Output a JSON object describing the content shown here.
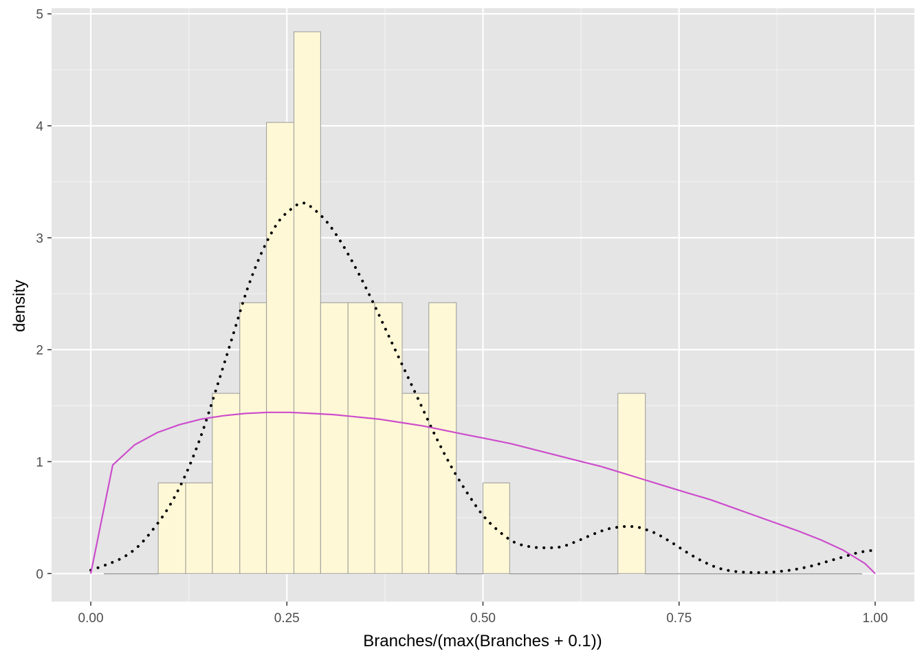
{
  "chart_data": {
    "type": "histogram",
    "title": "",
    "xlabel": "Branches/(max(Branches + 0.1))",
    "ylabel": "density",
    "xlim": [
      -0.05,
      1.05
    ],
    "ylim": [
      -0.25,
      5.05
    ],
    "x_ticks": [
      0.0,
      0.25,
      0.5,
      0.75,
      1.0
    ],
    "x_tick_labels": [
      "0.00",
      "0.25",
      "0.50",
      "0.75",
      "1.00"
    ],
    "y_ticks": [
      0,
      1,
      2,
      3,
      4,
      5
    ],
    "y_tick_labels": [
      "0",
      "1",
      "2",
      "3",
      "4",
      "5"
    ],
    "grid": true,
    "bins": [
      {
        "x0": 0.017,
        "x1": 0.086,
        "density": 0
      },
      {
        "x0": 0.086,
        "x1": 0.121,
        "density": 0.81
      },
      {
        "x0": 0.121,
        "x1": 0.155,
        "density": 0.81
      },
      {
        "x0": 0.155,
        "x1": 0.19,
        "density": 1.61
      },
      {
        "x0": 0.19,
        "x1": 0.224,
        "density": 2.42
      },
      {
        "x0": 0.224,
        "x1": 0.259,
        "density": 4.03
      },
      {
        "x0": 0.259,
        "x1": 0.293,
        "density": 4.84
      },
      {
        "x0": 0.293,
        "x1": 0.328,
        "density": 2.42
      },
      {
        "x0": 0.328,
        "x1": 0.362,
        "density": 2.42
      },
      {
        "x0": 0.362,
        "x1": 0.397,
        "density": 2.42
      },
      {
        "x0": 0.397,
        "x1": 0.431,
        "density": 1.61
      },
      {
        "x0": 0.431,
        "x1": 0.466,
        "density": 2.42
      },
      {
        "x0": 0.466,
        "x1": 0.5,
        "density": 0
      },
      {
        "x0": 0.5,
        "x1": 0.534,
        "density": 0.81
      },
      {
        "x0": 0.534,
        "x1": 0.672,
        "density": 0
      },
      {
        "x0": 0.672,
        "x1": 0.707,
        "density": 1.61
      },
      {
        "x0": 0.707,
        "x1": 0.983,
        "density": 0
      }
    ],
    "series": [
      {
        "kind": "density-curve",
        "color": "#000000",
        "style": "dotted",
        "x": [
          0.0,
          0.02,
          0.04,
          0.06,
          0.08,
          0.1,
          0.12,
          0.14,
          0.16,
          0.18,
          0.2,
          0.22,
          0.24,
          0.26,
          0.27,
          0.28,
          0.3,
          0.32,
          0.34,
          0.36,
          0.38,
          0.4,
          0.42,
          0.44,
          0.46,
          0.48,
          0.5,
          0.52,
          0.54,
          0.56,
          0.58,
          0.6,
          0.62,
          0.64,
          0.66,
          0.68,
          0.69,
          0.7,
          0.72,
          0.74,
          0.76,
          0.78,
          0.8,
          0.82,
          0.84,
          0.86,
          0.88,
          0.9,
          0.92,
          0.94,
          0.96,
          0.98,
          1.0
        ],
        "y": [
          0.03,
          0.08,
          0.14,
          0.24,
          0.4,
          0.6,
          0.87,
          1.22,
          1.65,
          2.1,
          2.55,
          2.9,
          3.15,
          3.28,
          3.31,
          3.28,
          3.15,
          2.95,
          2.7,
          2.42,
          2.12,
          1.82,
          1.52,
          1.22,
          0.95,
          0.72,
          0.52,
          0.38,
          0.28,
          0.24,
          0.23,
          0.24,
          0.29,
          0.35,
          0.4,
          0.42,
          0.42,
          0.41,
          0.36,
          0.28,
          0.19,
          0.11,
          0.05,
          0.02,
          0.01,
          0.01,
          0.02,
          0.04,
          0.07,
          0.11,
          0.15,
          0.19,
          0.21
        ]
      },
      {
        "kind": "fitted-curve",
        "color": "#cc4ccc",
        "style": "solid",
        "x": [
          0.0,
          0.028,
          0.056,
          0.085,
          0.113,
          0.141,
          0.169,
          0.197,
          0.226,
          0.254,
          0.282,
          0.31,
          0.338,
          0.367,
          0.395,
          0.423,
          0.451,
          0.479,
          0.508,
          0.536,
          0.564,
          0.592,
          0.62,
          0.649,
          0.677,
          0.705,
          0.733,
          0.761,
          0.79,
          0.818,
          0.846,
          0.874,
          0.902,
          0.931,
          0.959,
          0.987,
          1.0
        ],
        "y": [
          0.0,
          0.97,
          1.15,
          1.26,
          1.33,
          1.38,
          1.41,
          1.43,
          1.44,
          1.44,
          1.43,
          1.42,
          1.4,
          1.38,
          1.35,
          1.32,
          1.28,
          1.24,
          1.2,
          1.16,
          1.11,
          1.06,
          1.01,
          0.96,
          0.9,
          0.84,
          0.78,
          0.72,
          0.66,
          0.59,
          0.52,
          0.45,
          0.38,
          0.3,
          0.21,
          0.09,
          0.0
        ]
      }
    ],
    "colors": {
      "panel": "#e5e5e5",
      "grid_major": "#ffffff",
      "bar_fill": "#fff8d6",
      "bar_stroke": "#999999"
    }
  }
}
